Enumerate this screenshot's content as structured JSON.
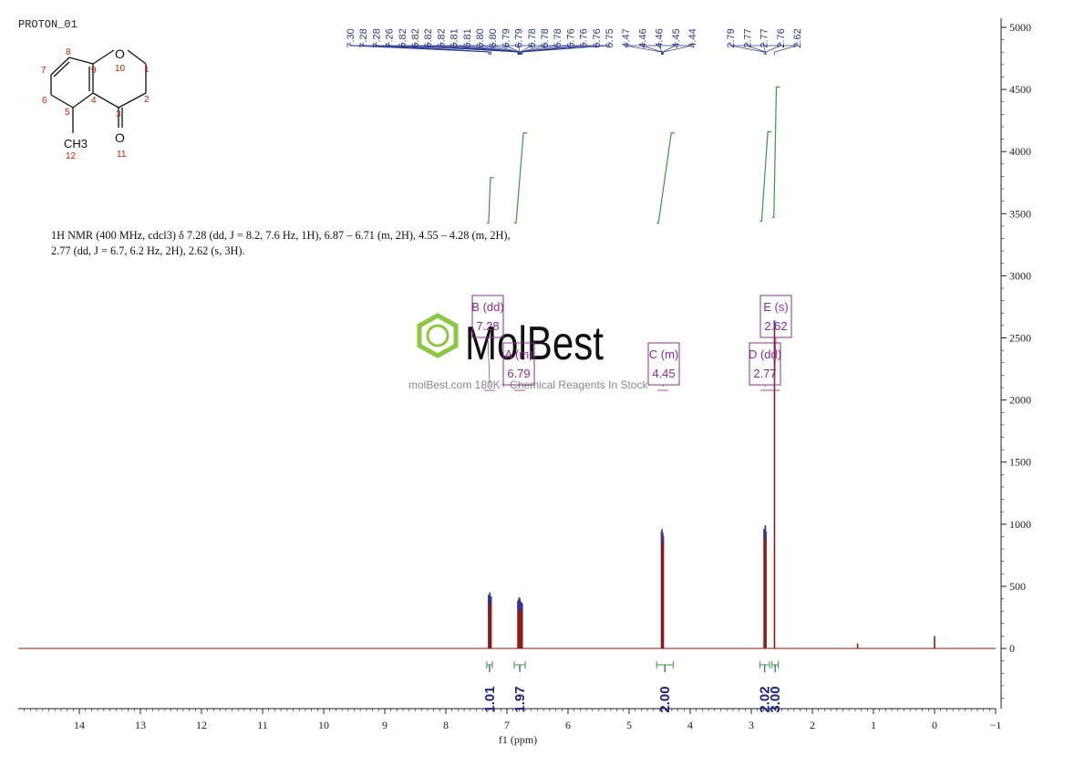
{
  "sample_name": "PROTON_01",
  "description_line1": "1H NMR (400 MHz, cdcl3) δ 7.28 (dd, J = 8.2, 7.6 Hz, 1H), 6.87 – 6.71 (m, 2H), 4.55 – 4.28 (m, 2H),",
  "description_line2": "2.77 (dd, J = 6.7, 6.2 Hz, 2H), 2.62 (s, 3H).",
  "watermark": {
    "brand": "MolBest",
    "tagline": "molBest.com 180K+ Chemical Reagents In Stock"
  },
  "structure": {
    "atom_labels": [
      "O",
      "CH3",
      "O"
    ],
    "numbers": [
      "1",
      "2",
      "3",
      "4",
      "5",
      "6",
      "7",
      "8",
      "9",
      "10",
      "11",
      "12"
    ]
  },
  "colors": {
    "spectrum": "#8b1a1a",
    "integral": "#3a9a3a",
    "peak_label": "#2b3a8f",
    "multiplet_box": "#8e2c8e",
    "integral_value": "#1a237e",
    "structure_numbers": "#cc2200"
  },
  "chart_data": {
    "type": "line",
    "title": "",
    "xlabel": "f1 (ppm)",
    "ylabel": "",
    "xlim": [
      15,
      -1
    ],
    "ylim": [
      -450,
      5000
    ],
    "x_reversed": true,
    "x_ticks": [
      14,
      13,
      12,
      11,
      10,
      9,
      8,
      7,
      6,
      5,
      4,
      3,
      2,
      1,
      0,
      -1
    ],
    "y_ticks": [
      0,
      500,
      1000,
      1500,
      2000,
      2500,
      3000,
      3500,
      4000,
      4500,
      5000
    ],
    "y_axis_side": "right",
    "peaks": [
      {
        "ppm": 7.3,
        "intensity": 430
      },
      {
        "ppm": 7.28,
        "intensity": 450
      },
      {
        "ppm": 7.26,
        "intensity": 420
      },
      {
        "ppm": 6.82,
        "intensity": 380
      },
      {
        "ppm": 6.81,
        "intensity": 390
      },
      {
        "ppm": 6.8,
        "intensity": 410
      },
      {
        "ppm": 6.79,
        "intensity": 400
      },
      {
        "ppm": 6.78,
        "intensity": 380
      },
      {
        "ppm": 6.76,
        "intensity": 370
      },
      {
        "ppm": 6.75,
        "intensity": 360
      },
      {
        "ppm": 4.47,
        "intensity": 940
      },
      {
        "ppm": 4.46,
        "intensity": 960
      },
      {
        "ppm": 4.45,
        "intensity": 930
      },
      {
        "ppm": 4.44,
        "intensity": 900
      },
      {
        "ppm": 2.79,
        "intensity": 960
      },
      {
        "ppm": 2.77,
        "intensity": 990
      },
      {
        "ppm": 2.76,
        "intensity": 940
      },
      {
        "ppm": 2.62,
        "intensity": 2640
      },
      {
        "ppm": 1.26,
        "intensity": 40
      },
      {
        "ppm": 0.0,
        "intensity": 100
      }
    ],
    "peak_labels": [
      "7.30",
      "7.28",
      "7.28",
      "7.26",
      "6.82",
      "6.82",
      "6.82",
      "6.82",
      "6.81",
      "6.81",
      "6.80",
      "6.80",
      "6.79",
      "6.79",
      "6.78",
      "6.78",
      "6.78",
      "6.76",
      "6.76",
      "6.76",
      "6.75",
      "4.47",
      "4.46",
      "4.46",
      "4.45",
      "4.44",
      "2.79",
      "2.77",
      "2.77",
      "2.76",
      "2.62"
    ],
    "multiplets": [
      {
        "label": "B (dd)",
        "shift": "7.28",
        "ppm": 7.28
      },
      {
        "label": "A (m)",
        "shift": "6.79",
        "ppm": 6.79
      },
      {
        "label": "C (m)",
        "shift": "4.45",
        "ppm": 4.45
      },
      {
        "label": "D (dd)",
        "shift": "2.77",
        "ppm": 2.77
      },
      {
        "label": "E (s)",
        "shift": "2.62",
        "ppm": 2.62
      }
    ],
    "integrals": [
      {
        "value": "1.01",
        "from": 7.33,
        "to": 7.24
      },
      {
        "value": "1.97",
        "from": 6.88,
        "to": 6.7
      },
      {
        "value": "2.00",
        "from": 4.55,
        "to": 4.28
      },
      {
        "value": "2.02",
        "from": 2.86,
        "to": 2.7
      },
      {
        "value": "3.00",
        "from": 2.66,
        "to": 2.56
      }
    ]
  }
}
